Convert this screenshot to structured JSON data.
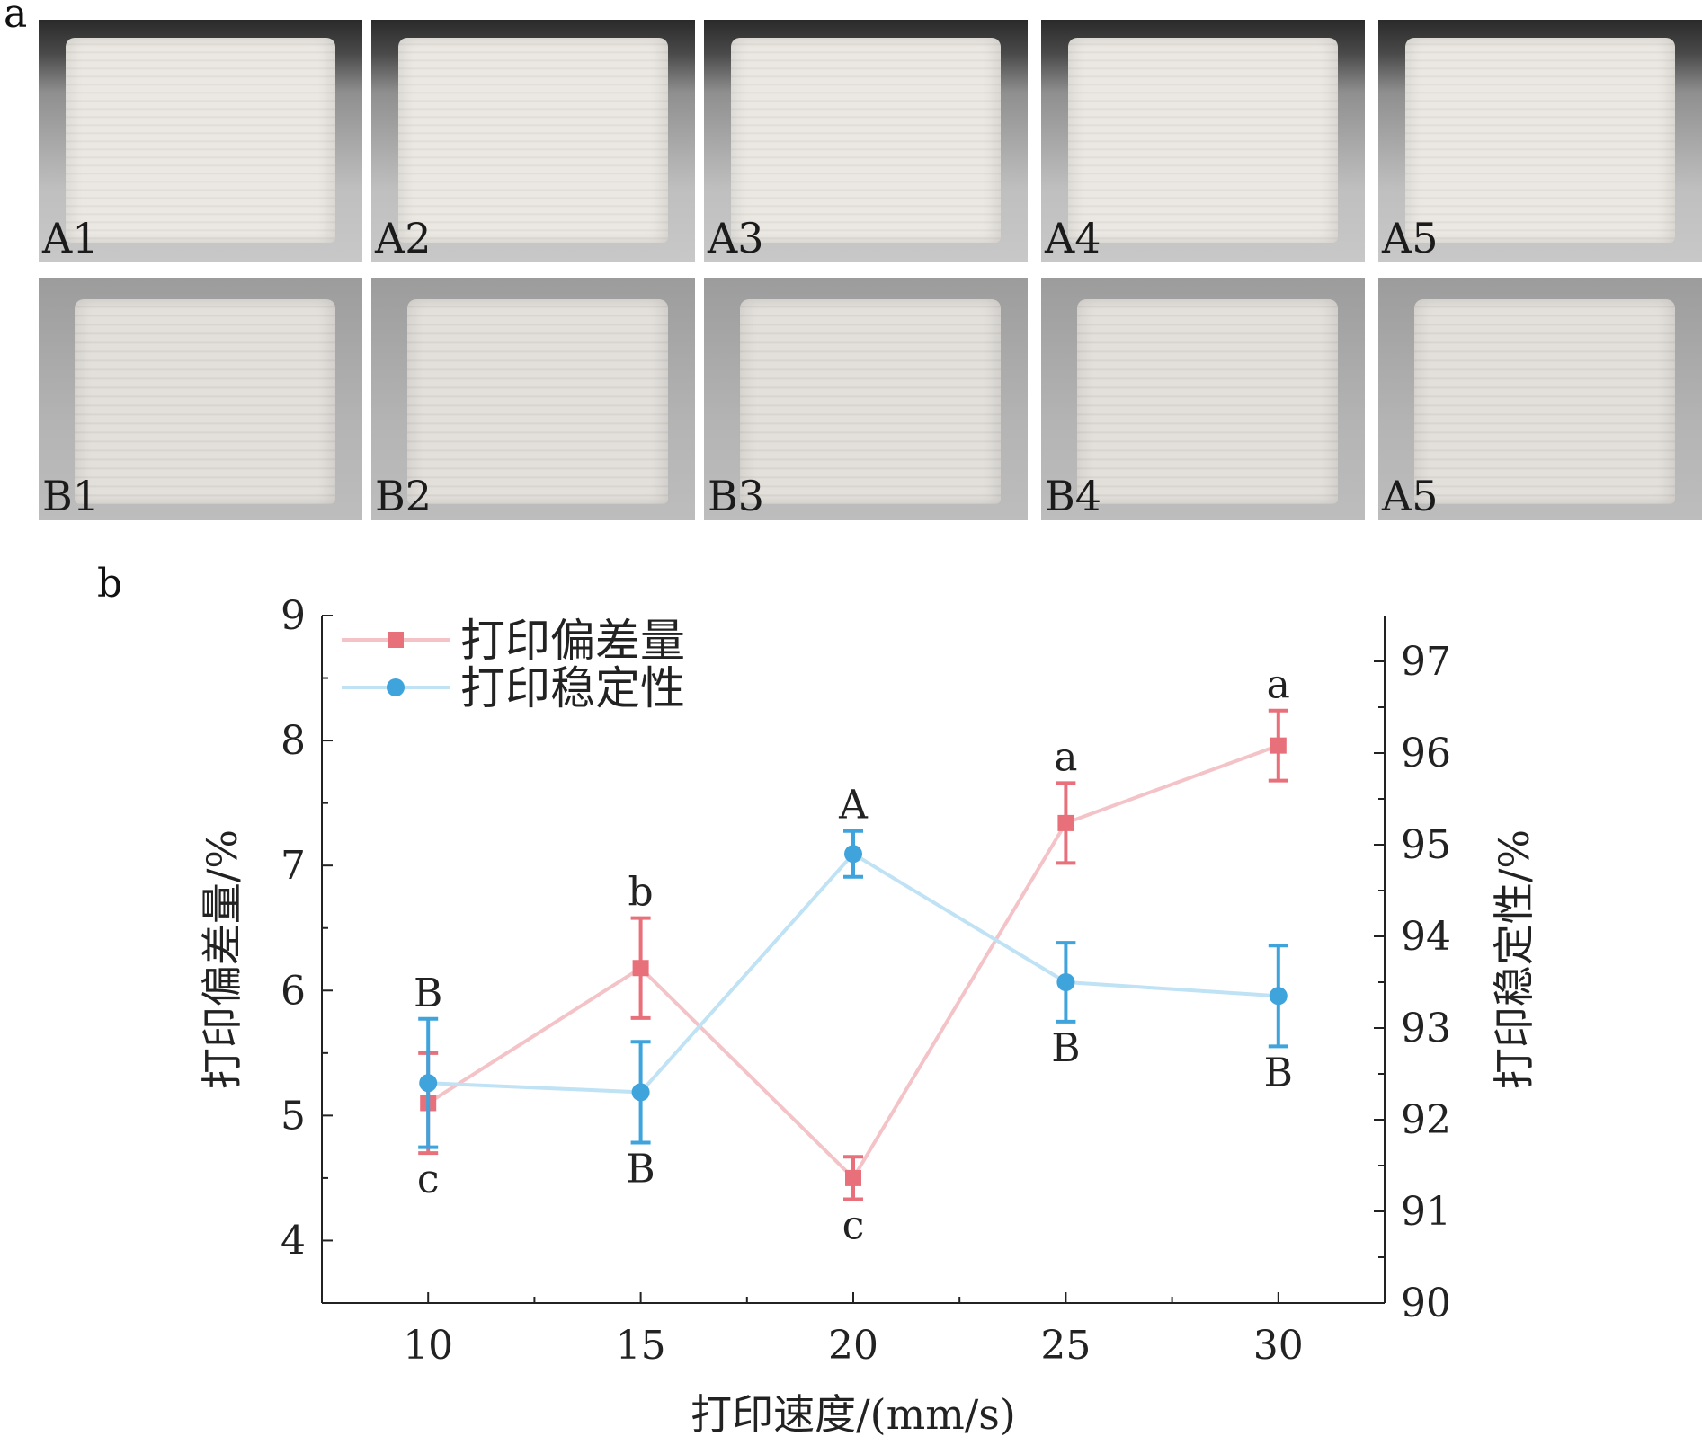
{
  "panel_labels": {
    "a": "a",
    "b": "b"
  },
  "photos": {
    "row_a": [
      "A1",
      "A2",
      "A3",
      "A4",
      "A5"
    ],
    "row_b": [
      "B1",
      "B2",
      "B3",
      "B4",
      "A5"
    ]
  },
  "chart_data": {
    "type": "line",
    "xlabel": "打印速度/(mm/s)",
    "ylabel_left": "打印偏差量/%",
    "ylabel_right": "打印稳定性/%",
    "x": [
      10,
      15,
      20,
      25,
      30
    ],
    "xlim": [
      7.5,
      32.5
    ],
    "xticks": [
      10,
      15,
      20,
      25,
      30
    ],
    "ylim_left": [
      3.5,
      9
    ],
    "yticks_left": [
      4,
      5,
      6,
      7,
      8,
      9
    ],
    "ylim_right": [
      90,
      97.5
    ],
    "yticks_right": [
      90,
      91,
      92,
      93,
      94,
      95,
      96,
      97
    ],
    "legend_position": "top-left",
    "series": [
      {
        "name": "打印偏差量",
        "axis": "left",
        "color": "#e8707a",
        "line_color": "#f4c3c7",
        "marker": "square",
        "values": [
          5.1,
          6.18,
          4.5,
          7.34,
          7.96
        ],
        "errors": [
          0.4,
          0.4,
          0.17,
          0.32,
          0.28
        ],
        "letters": [
          "c",
          "b",
          "c",
          "a",
          "a"
        ],
        "letter_positions": [
          "below",
          "above",
          "below",
          "above",
          "above"
        ]
      },
      {
        "name": "打印稳定性",
        "axis": "right",
        "color": "#3fa3dc",
        "line_color": "#bfe2f5",
        "marker": "circle",
        "values": [
          92.4,
          92.3,
          94.9,
          93.5,
          93.35
        ],
        "errors": [
          0.7,
          0.55,
          0.25,
          0.43,
          0.55
        ],
        "letters": [
          "B",
          "B",
          "A",
          "B",
          "B"
        ],
        "letter_positions": [
          "above",
          "below",
          "above",
          "below",
          "below"
        ]
      }
    ]
  }
}
